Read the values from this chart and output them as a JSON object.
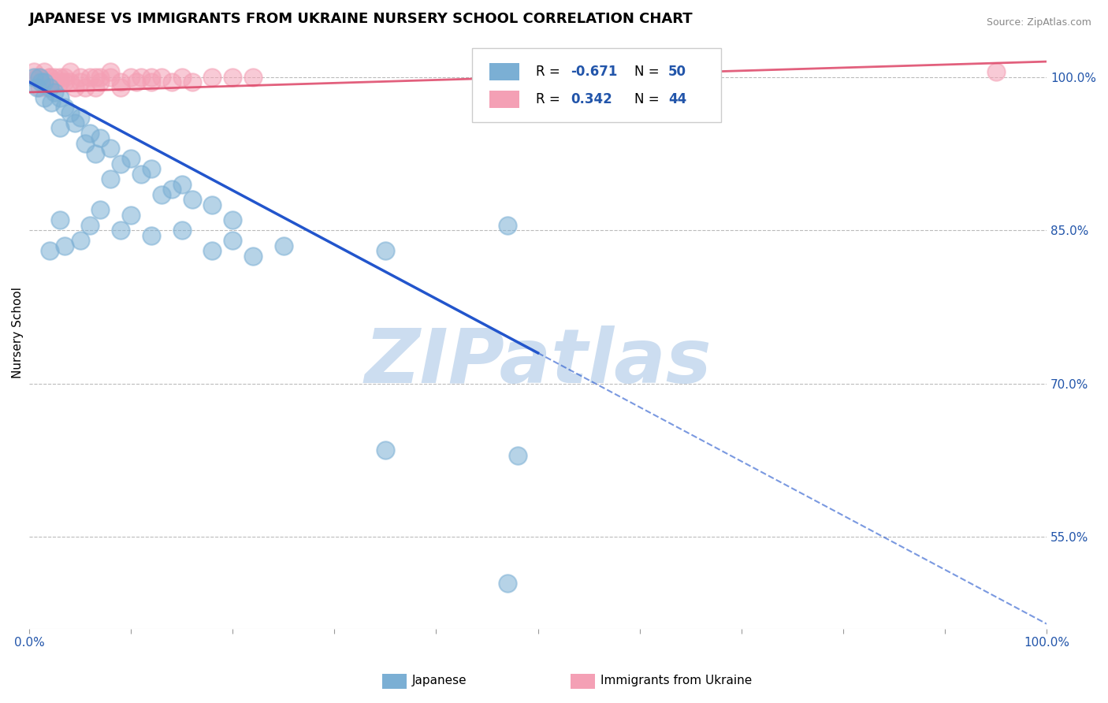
{
  "title": "JAPANESE VS IMMIGRANTS FROM UKRAINE NURSERY SCHOOL CORRELATION CHART",
  "source": "Source: ZipAtlas.com",
  "ylabel": "Nursery School",
  "right_yticks": [
    100.0,
    85.0,
    70.0,
    55.0
  ],
  "xlim": [
    0.0,
    100.0
  ],
  "ylim": [
    46.0,
    104.0
  ],
  "japanese_color": "#7bafd4",
  "ukraine_color": "#f4a0b5",
  "japanese_R": -0.671,
  "japanese_N": 50,
  "ukraine_R": 0.342,
  "ukraine_N": 44,
  "japanese_line_color": "#2255cc",
  "ukraine_line_color": "#dd4466",
  "watermark": "ZIPatlas",
  "watermark_color": "#ccddf0",
  "background_color": "#ffffff",
  "grid_color": "#bbbbbb",
  "jp_line_x0": 0.0,
  "jp_line_y0": 99.5,
  "jp_line_x1": 100.0,
  "jp_line_y1": 46.5,
  "jp_solid_end": 50.0,
  "uk_line_x0": 0.0,
  "uk_line_y0": 98.5,
  "uk_line_x1": 100.0,
  "uk_line_y1": 101.5,
  "japanese_scatter": [
    [
      0.5,
      100.0
    ],
    [
      1.0,
      100.0
    ],
    [
      1.5,
      99.5
    ],
    [
      0.8,
      99.0
    ],
    [
      1.2,
      99.5
    ],
    [
      2.0,
      99.0
    ],
    [
      2.5,
      98.5
    ],
    [
      3.0,
      98.0
    ],
    [
      1.5,
      98.0
    ],
    [
      2.2,
      97.5
    ],
    [
      3.5,
      97.0
    ],
    [
      4.0,
      96.5
    ],
    [
      5.0,
      96.0
    ],
    [
      4.5,
      95.5
    ],
    [
      3.0,
      95.0
    ],
    [
      6.0,
      94.5
    ],
    [
      7.0,
      94.0
    ],
    [
      5.5,
      93.5
    ],
    [
      8.0,
      93.0
    ],
    [
      6.5,
      92.5
    ],
    [
      10.0,
      92.0
    ],
    [
      9.0,
      91.5
    ],
    [
      12.0,
      91.0
    ],
    [
      11.0,
      90.5
    ],
    [
      8.0,
      90.0
    ],
    [
      15.0,
      89.5
    ],
    [
      14.0,
      89.0
    ],
    [
      13.0,
      88.5
    ],
    [
      16.0,
      88.0
    ],
    [
      18.0,
      87.5
    ],
    [
      7.0,
      87.0
    ],
    [
      10.0,
      86.5
    ],
    [
      20.0,
      86.0
    ],
    [
      3.0,
      86.0
    ],
    [
      6.0,
      85.5
    ],
    [
      15.0,
      85.0
    ],
    [
      9.0,
      85.0
    ],
    [
      12.0,
      84.5
    ],
    [
      20.0,
      84.0
    ],
    [
      5.0,
      84.0
    ],
    [
      25.0,
      83.5
    ],
    [
      18.0,
      83.0
    ],
    [
      35.0,
      83.0
    ],
    [
      3.5,
      83.5
    ],
    [
      22.0,
      82.5
    ],
    [
      47.0,
      85.5
    ],
    [
      2.0,
      83.0
    ],
    [
      35.0,
      63.5
    ],
    [
      47.0,
      50.5
    ],
    [
      48.0,
      63.0
    ]
  ],
  "ukraine_scatter": [
    [
      0.5,
      100.5
    ],
    [
      1.0,
      100.0
    ],
    [
      0.8,
      100.0
    ],
    [
      1.5,
      100.5
    ],
    [
      2.0,
      100.0
    ],
    [
      1.2,
      99.5
    ],
    [
      2.5,
      99.5
    ],
    [
      3.0,
      100.0
    ],
    [
      1.8,
      99.0
    ],
    [
      2.2,
      99.5
    ],
    [
      3.5,
      100.0
    ],
    [
      4.0,
      99.5
    ],
    [
      5.0,
      100.0
    ],
    [
      4.5,
      99.0
    ],
    [
      3.0,
      99.5
    ],
    [
      6.0,
      100.0
    ],
    [
      7.0,
      99.5
    ],
    [
      5.5,
      99.0
    ],
    [
      8.0,
      100.0
    ],
    [
      6.5,
      99.0
    ],
    [
      10.0,
      100.0
    ],
    [
      9.0,
      99.5
    ],
    [
      12.0,
      99.5
    ],
    [
      11.0,
      100.0
    ],
    [
      7.0,
      100.0
    ],
    [
      15.0,
      100.0
    ],
    [
      14.0,
      99.5
    ],
    [
      13.0,
      100.0
    ],
    [
      4.0,
      100.5
    ],
    [
      18.0,
      100.0
    ],
    [
      2.0,
      100.0
    ],
    [
      8.0,
      100.5
    ],
    [
      20.0,
      100.0
    ],
    [
      3.5,
      99.5
    ],
    [
      6.5,
      100.0
    ],
    [
      1.0,
      99.0
    ],
    [
      12.0,
      100.0
    ],
    [
      5.0,
      99.5
    ],
    [
      9.0,
      99.0
    ],
    [
      95.0,
      100.5
    ],
    [
      22.0,
      100.0
    ],
    [
      16.0,
      99.5
    ],
    [
      2.5,
      100.0
    ],
    [
      10.5,
      99.5
    ]
  ]
}
